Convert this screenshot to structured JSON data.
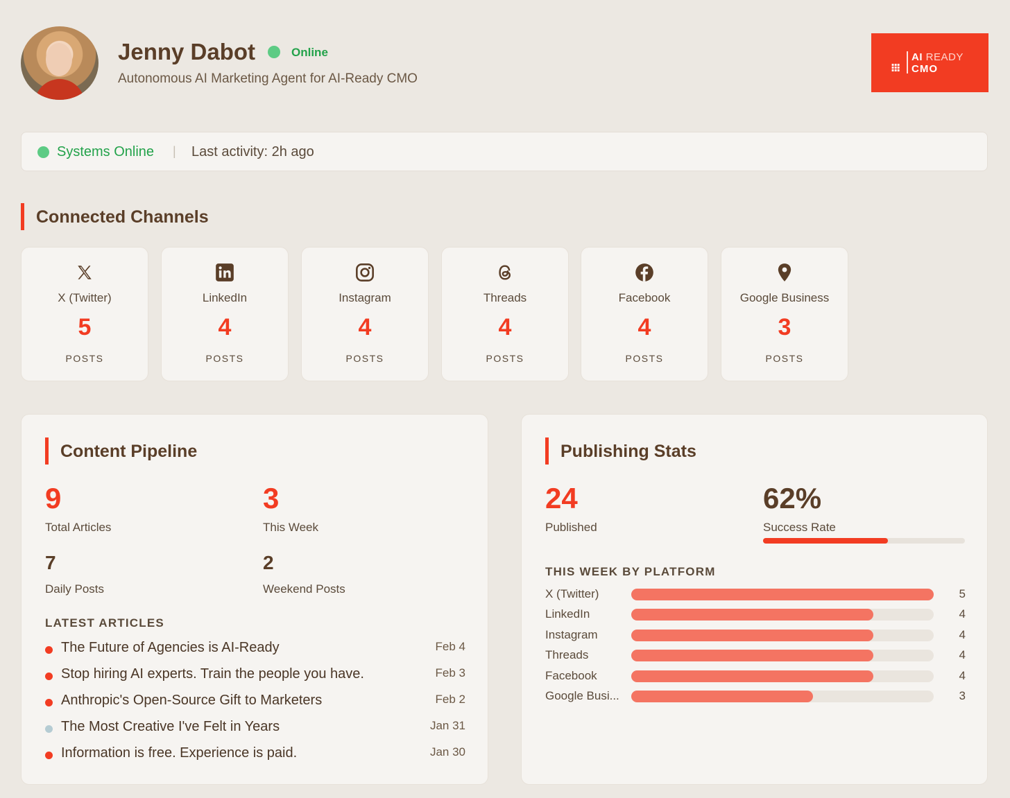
{
  "profile": {
    "name": "Jenny Dabot",
    "status": "Online",
    "subtitle": "Autonomous AI Marketing Agent for AI-Ready CMO"
  },
  "logo": {
    "line1_a": "AI",
    "line1_b": "READY",
    "line2": "CMO",
    "icon": "grid-icon"
  },
  "status_bar": {
    "status": "Systems Online",
    "separator": "|",
    "last_activity": "Last activity: 2h ago"
  },
  "channels": {
    "title": "Connected Channels",
    "items": [
      {
        "name": "X (Twitter)",
        "count": "5",
        "label": "POSTS",
        "icon": "x-twitter-icon"
      },
      {
        "name": "LinkedIn",
        "count": "4",
        "label": "POSTS",
        "icon": "linkedin-icon"
      },
      {
        "name": "Instagram",
        "count": "4",
        "label": "POSTS",
        "icon": "instagram-icon"
      },
      {
        "name": "Threads",
        "count": "4",
        "label": "POSTS",
        "icon": "threads-icon"
      },
      {
        "name": "Facebook",
        "count": "4",
        "label": "POSTS",
        "icon": "facebook-icon"
      },
      {
        "name": "Google Business",
        "count": "3",
        "label": "POSTS",
        "icon": "map-pin-icon"
      }
    ]
  },
  "pipeline": {
    "title": "Content Pipeline",
    "total_articles": {
      "value": "9",
      "label": "Total Articles"
    },
    "this_week": {
      "value": "3",
      "label": "This Week"
    },
    "daily_posts": {
      "value": "7",
      "label": "Daily Posts"
    },
    "weekend_posts": {
      "value": "2",
      "label": "Weekend Posts"
    },
    "latest_heading": "LATEST ARTICLES",
    "articles": [
      {
        "title": "The Future of Agencies is AI-Ready",
        "date": "Feb 4",
        "dot": "red"
      },
      {
        "title": "Stop hiring AI experts. Train the people you have.",
        "date": "Feb 3",
        "dot": "red"
      },
      {
        "title": "Anthropic's Open-Source Gift to Marketers",
        "date": "Feb 2",
        "dot": "red"
      },
      {
        "title": "The Most Creative I've Felt in Years",
        "date": "Jan 31",
        "dot": "grey"
      },
      {
        "title": "Information is free. Experience is paid.",
        "date": "Jan 30",
        "dot": "red"
      }
    ]
  },
  "stats": {
    "title": "Publishing Stats",
    "published": {
      "value": "24",
      "label": "Published"
    },
    "success_rate": {
      "value": "62%",
      "label": "Success Rate",
      "fraction": 0.62
    },
    "platform_heading": "THIS WEEK BY PLATFORM",
    "platform_max": 5,
    "platforms": [
      {
        "name": "X (Twitter)",
        "value": "5"
      },
      {
        "name": "LinkedIn",
        "value": "4"
      },
      {
        "name": "Instagram",
        "value": "4"
      },
      {
        "name": "Threads",
        "value": "4"
      },
      {
        "name": "Facebook",
        "value": "4"
      },
      {
        "name": "Google Busi...",
        "value": "3"
      }
    ]
  },
  "colors": {
    "accent": "#F23C22",
    "online": "#5DCB84",
    "bar": "#F47462",
    "background": "#ECE8E2"
  }
}
